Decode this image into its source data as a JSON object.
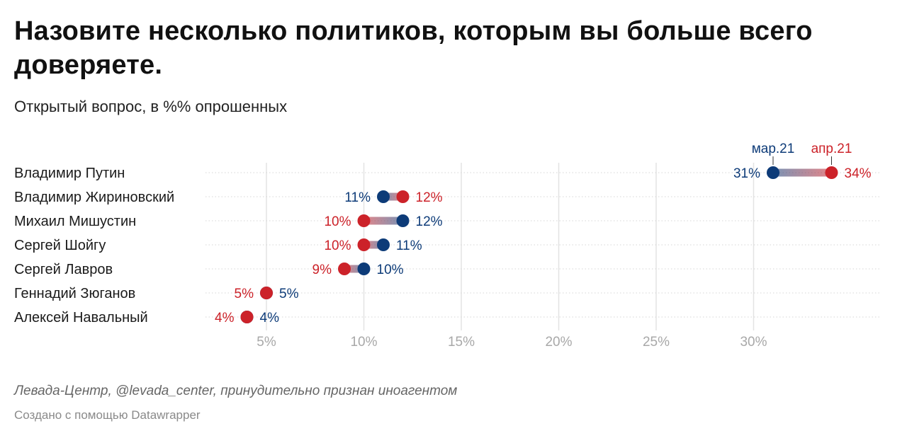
{
  "chart_data": {
    "type": "range-dot",
    "title": "Назовите несколько политиков, которым вы больше всего доверяете.",
    "subtitle": "Открытый вопрос, в %% опрошенных",
    "xlim": [
      0,
      35
    ],
    "x_ticks": [
      5,
      10,
      15,
      20,
      25,
      30
    ],
    "x_tick_labels": [
      "5%",
      "10%",
      "15%",
      "20%",
      "25%",
      "30%"
    ],
    "grid": true,
    "series": [
      {
        "name": "мар.21",
        "color": "#0d3b78"
      },
      {
        "name": "апр.21",
        "color": "#cc2229"
      }
    ],
    "categories": [
      "Владимир Путин",
      "Владимир Жириновский",
      "Михаил Мишустин",
      "Сергей Шойгу",
      "Сергей Лавров",
      "Геннадий Зюганов",
      "Алексей Навальный"
    ],
    "rows": [
      {
        "name": "Владимир Путин",
        "mar": 31,
        "apr": 34,
        "mar_label": "31%",
        "apr_label": "34%"
      },
      {
        "name": "Владимир Жириновский",
        "mar": 11,
        "apr": 12,
        "mar_label": "11%",
        "apr_label": "12%"
      },
      {
        "name": "Михаил Мишустин",
        "mar": 12,
        "apr": 10,
        "mar_label": "12%",
        "apr_label": "10%"
      },
      {
        "name": "Сергей Шойгу",
        "mar": 11,
        "apr": 10,
        "mar_label": "11%",
        "apr_label": "10%"
      },
      {
        "name": "Сергей Лавров",
        "mar": 10,
        "apr": 9,
        "mar_label": "10%",
        "apr_label": "9%"
      },
      {
        "name": "Геннадий Зюганов",
        "mar": 5,
        "apr": 5,
        "mar_label": "5%",
        "apr_label": "5%"
      },
      {
        "name": "Алексей Навальный",
        "mar": 4,
        "apr": 4,
        "mar_label": "4%",
        "apr_label": "4%"
      }
    ]
  },
  "footer": {
    "source": "Левада-Центр, @levada_center, принудительно признан иноагентом",
    "credit": "Создано с помощью Datawrapper"
  }
}
